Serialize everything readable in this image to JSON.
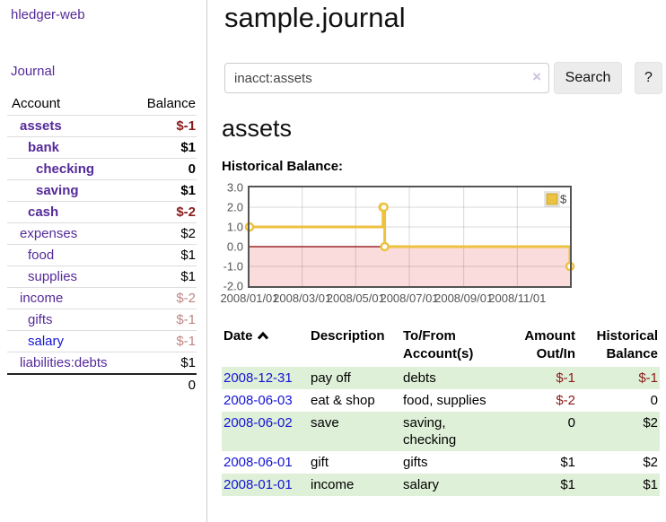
{
  "sidebar": {
    "brand": "hledger-web",
    "nav": {
      "journal_label": "Journal"
    },
    "accounts_table": {
      "headers": {
        "account": "Account",
        "balance": "Balance"
      },
      "rows": [
        {
          "name": "assets",
          "level": 1,
          "bold": true,
          "balance": "$-1",
          "balance_style": "neg-strong"
        },
        {
          "name": "bank",
          "level": 2,
          "bold": true,
          "balance": "$1",
          "balance_style": "pos"
        },
        {
          "name": "checking",
          "level": 3,
          "bold": true,
          "balance": "0",
          "balance_style": "pos"
        },
        {
          "name": "saving",
          "level": 3,
          "bold": true,
          "balance": "$1",
          "balance_style": "pos"
        },
        {
          "name": "cash",
          "level": 2,
          "bold": true,
          "balance": "$-2",
          "balance_style": "neg-strong"
        },
        {
          "name": "expenses",
          "level": 1,
          "bold": false,
          "balance": "$2",
          "balance_style": "pos"
        },
        {
          "name": "food",
          "level": 2,
          "bold": false,
          "balance": "$1",
          "balance_style": "pos"
        },
        {
          "name": "supplies",
          "level": 2,
          "bold": false,
          "balance": "$1",
          "balance_style": "pos"
        },
        {
          "name": "income",
          "level": 1,
          "bold": false,
          "balance": "$-2",
          "balance_style": "neg-soft"
        },
        {
          "name": "gifts",
          "level": 2,
          "bold": false,
          "balance": "$-1",
          "balance_style": "neg-soft"
        },
        {
          "name": "salary",
          "level": 2,
          "bold": false,
          "link_color": "blue",
          "balance": "$-1",
          "balance_style": "neg-soft"
        },
        {
          "name": "liabilities:debts",
          "level": 1,
          "bold": false,
          "balance": "$1",
          "balance_style": "pos"
        }
      ],
      "total": "0"
    }
  },
  "header": {
    "title": "sample.journal"
  },
  "search": {
    "value": "inacct:assets",
    "clear_icon": "×",
    "button_label": "Search",
    "help_label": "?"
  },
  "account_page": {
    "heading": "assets",
    "chart_label": "Historical Balance:"
  },
  "chart_data": {
    "type": "line",
    "title": "Historical Balance",
    "step": true,
    "series": [
      {
        "name": "$",
        "color": "#edc240",
        "points": [
          [
            "2008-01-01",
            1
          ],
          [
            "2008-06-01",
            2
          ],
          [
            "2008-06-02",
            2
          ],
          [
            "2008-06-03",
            0
          ],
          [
            "2008-12-31",
            -1
          ]
        ]
      }
    ],
    "xlim": [
      "2008-01-01",
      "2008-12-31"
    ],
    "ylim": [
      -2,
      3
    ],
    "x_ticks": [
      "2008/01/01",
      "2008/03/01",
      "2008/05/01",
      "2008/07/01",
      "2008/09/01",
      "2008/11/01"
    ],
    "y_ticks": [
      3.0,
      2.0,
      1.0,
      0.0,
      -1.0,
      -2.0
    ],
    "grid": true,
    "legend_position": "top-right",
    "negative_region_color": "#fbdcdc",
    "zero_line_color": "#8b0000",
    "border_color": "#545454",
    "tick_color": "#545454"
  },
  "register_table": {
    "headers": {
      "date": "Date",
      "description": "Description",
      "accounts": "To/From Account(s)",
      "amount": "Amount Out/In",
      "balance": "Historical Balance"
    },
    "sort_icon": "chevron-up-icon",
    "rows": [
      {
        "date": "2008-12-31",
        "description": "pay off",
        "accounts": "debts",
        "amount": "$-1",
        "amount_neg": true,
        "balance": "$-1",
        "balance_neg": true,
        "shaded": true
      },
      {
        "date": "2008-06-03",
        "description": "eat & shop",
        "accounts": "food, supplies",
        "amount": "$-2",
        "amount_neg": true,
        "balance": "0",
        "balance_neg": false,
        "shaded": false
      },
      {
        "date": "2008-06-02",
        "description": "save",
        "accounts": "saving, checking",
        "amount": "0",
        "amount_neg": false,
        "balance": "$2",
        "balance_neg": false,
        "shaded": true
      },
      {
        "date": "2008-06-01",
        "description": "gift",
        "accounts": "gifts",
        "amount": "$1",
        "amount_neg": false,
        "balance": "$2",
        "balance_neg": false,
        "shaded": false
      },
      {
        "date": "2008-01-01",
        "description": "income",
        "accounts": "salary",
        "amount": "$1",
        "amount_neg": false,
        "balance": "$1",
        "balance_neg": false,
        "shaded": true
      }
    ]
  },
  "colors": {
    "link_purple": "#552a99",
    "link_blue": "#1414d4",
    "negative_strong": "#8b1a1a",
    "negative_soft": "#c08585",
    "row_shade_green": "#dff0d8",
    "chart_gold": "#edc240",
    "chart_negative_fill": "#fbdcdc",
    "chart_zero_line": "#8b0000"
  }
}
